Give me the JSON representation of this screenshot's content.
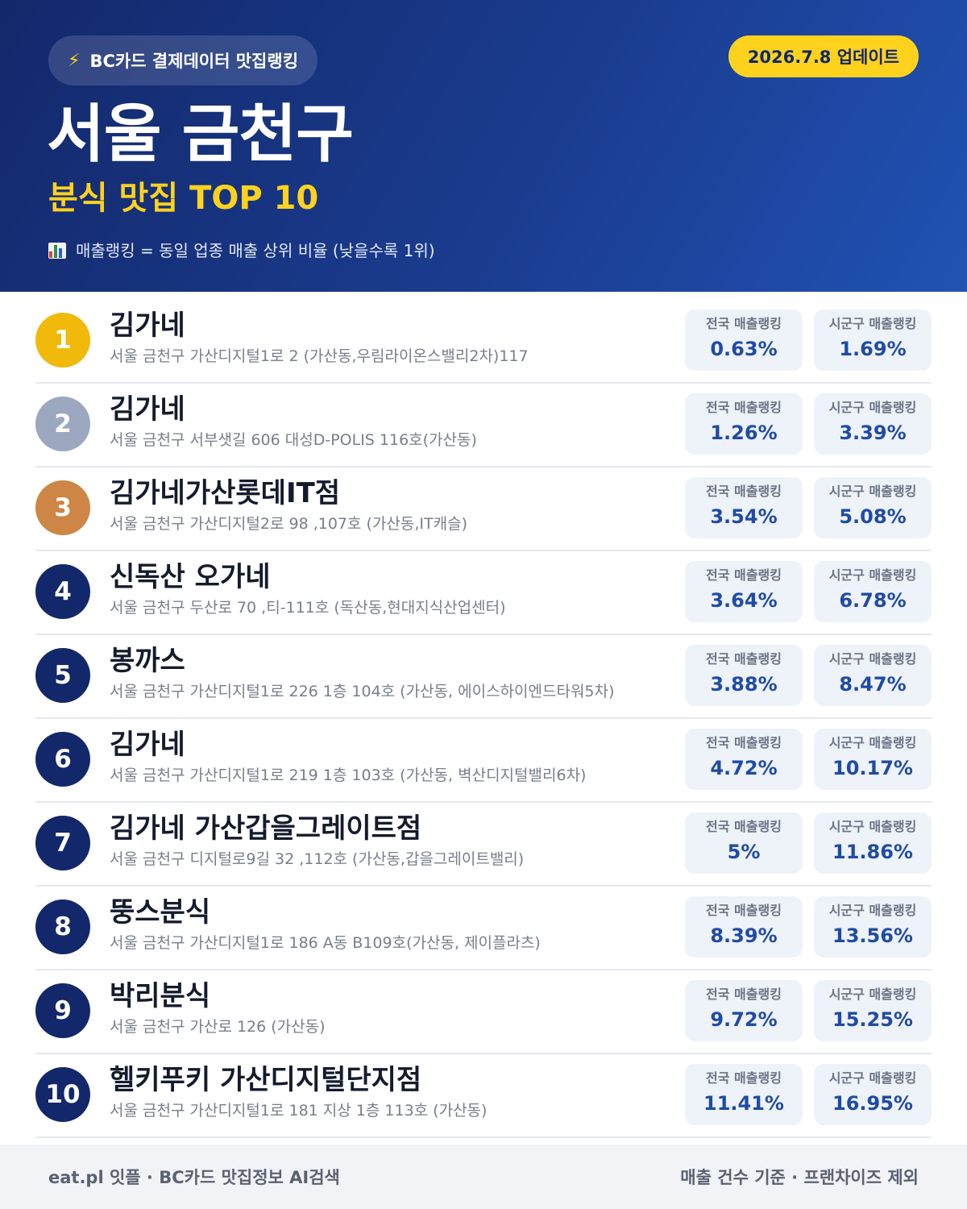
{
  "header": {
    "pill_label": "BC카드 결제데이터 맛집랭킹",
    "pill_icon": "lightning-icon",
    "update_badge": "2026.7.8 업데이트",
    "title": "서울 금천구",
    "subtitle": "분식 맛집 TOP 10",
    "note_icon": "bar-chart-icon",
    "note": "매출랭킹 = 동일 업종 매출 상위 비율 (낮을수록 1위)"
  },
  "stat_labels": {
    "national": "전국 매출랭킹",
    "local": "시군구 매출랭킹"
  },
  "colors": {
    "header_dark": "#13286a",
    "header_light": "#2152b4",
    "accent_yellow": "#ffd21e",
    "rank_gold": "#f1b90a",
    "rank_silver": "#9ba8bf",
    "rank_bronze": "#cd8645",
    "rank_default": "#13286a",
    "stat_value": "#1f4ba5"
  },
  "restaurants": [
    {
      "rank": "1",
      "name": "김가네",
      "address": "서울 금천구 가산디지털1로 2 (가산동,우림라이온스밸리2차)117",
      "national": "0.63%",
      "local": "1.69%"
    },
    {
      "rank": "2",
      "name": "김가네",
      "address": "서울 금천구 서부샛길 606 대성D-POLIS 116호(가산동)",
      "national": "1.26%",
      "local": "3.39%"
    },
    {
      "rank": "3",
      "name": "김가네가산롯데IT점",
      "address": "서울 금천구 가산디지털2로 98 ,107호 (가산동,IT캐슬)",
      "national": "3.54%",
      "local": "5.08%"
    },
    {
      "rank": "4",
      "name": "신독산 오가네",
      "address": "서울 금천구 두산로 70 ,티-111호 (독산동,현대지식산업센터)",
      "national": "3.64%",
      "local": "6.78%"
    },
    {
      "rank": "5",
      "name": "봉까스",
      "address": "서울 금천구 가산디지털1로 226 1층 104호 (가산동, 에이스하이엔드타워5차)",
      "national": "3.88%",
      "local": "8.47%"
    },
    {
      "rank": "6",
      "name": "김가네",
      "address": "서울 금천구 가산디지털1로 219 1층 103호 (가산동, 벽산디지털밸리6차)",
      "national": "4.72%",
      "local": "10.17%"
    },
    {
      "rank": "7",
      "name": "김가네 가산갑을그레이트점",
      "address": "서울 금천구 디지털로9길 32 ,112호 (가산동,갑을그레이트밸리)",
      "national": "5%",
      "local": "11.86%"
    },
    {
      "rank": "8",
      "name": "뚱스분식",
      "address": "서울 금천구 가산디지털1로 186 A동 B109호(가산동, 제이플라츠)",
      "national": "8.39%",
      "local": "13.56%"
    },
    {
      "rank": "9",
      "name": "박리분식",
      "address": "서울 금천구 가산로 126 (가산동)",
      "national": "9.72%",
      "local": "15.25%"
    },
    {
      "rank": "10",
      "name": "헬키푸키 가산디지털단지점",
      "address": "서울 금천구 가산디지털1로 181 지상 1층 113호 (가산동)",
      "national": "11.41%",
      "local": "16.95%"
    }
  ],
  "footer": {
    "left": "eat.pl 잇플 · BC카드 맛집정보 AI검색",
    "right": "매출 건수 기준 · 프랜차이즈 제외"
  }
}
